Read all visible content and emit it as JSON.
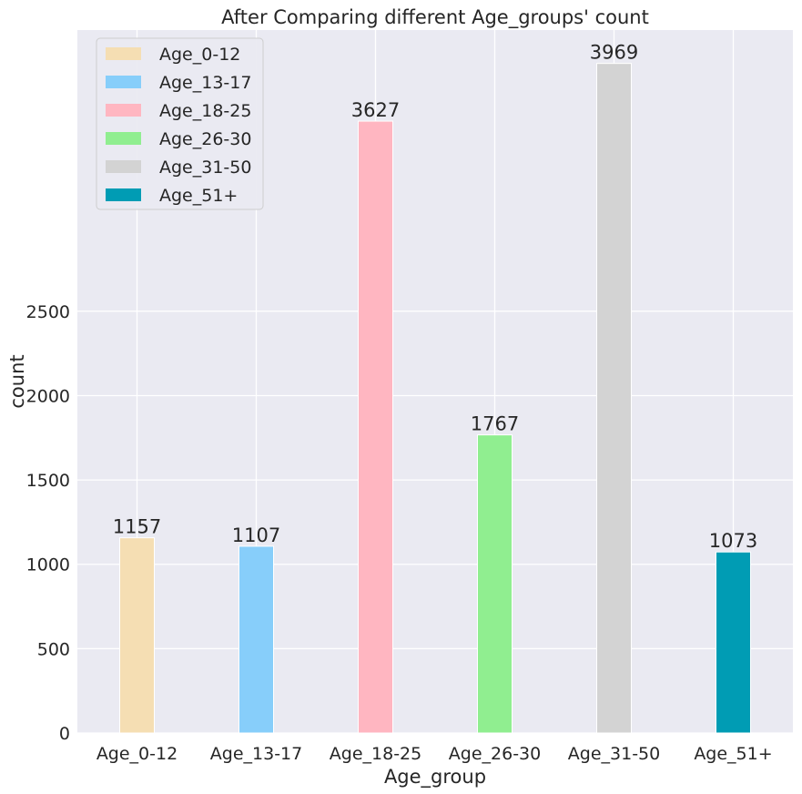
{
  "chart_data": {
    "type": "bar",
    "title": "After Comparing different Age_groups' count",
    "xlabel": "Age_group",
    "ylabel": "count",
    "categories": [
      "Age_0-12",
      "Age_13-17",
      "Age_18-25",
      "Age_26-30",
      "Age_31-50",
      "Age_51+"
    ],
    "values": [
      1157,
      1107,
      3627,
      1767,
      3969,
      1073
    ],
    "data_labels": [
      "1157",
      "1107",
      "3627",
      "1767",
      "3969",
      "1073"
    ],
    "colors": [
      "#f5deb3",
      "#87cefa",
      "#ffb6c1",
      "#90ee90",
      "#d3d3d3",
      "#009cb4"
    ],
    "yticks": [
      0,
      500,
      1000,
      1500,
      2000,
      2500
    ],
    "ytick_labels": [
      "0",
      "500",
      "1000",
      "1500",
      "2000",
      "2500"
    ],
    "ylim": [
      0,
      4167
    ],
    "grid": true,
    "background": "#eaeaf2",
    "grid_color": "#ffffff",
    "legend": {
      "position": "top-left",
      "entries": [
        "Age_0-12",
        "Age_13-17",
        "Age_18-25",
        "Age_26-30",
        "Age_31-50",
        "Age_51+"
      ]
    }
  }
}
